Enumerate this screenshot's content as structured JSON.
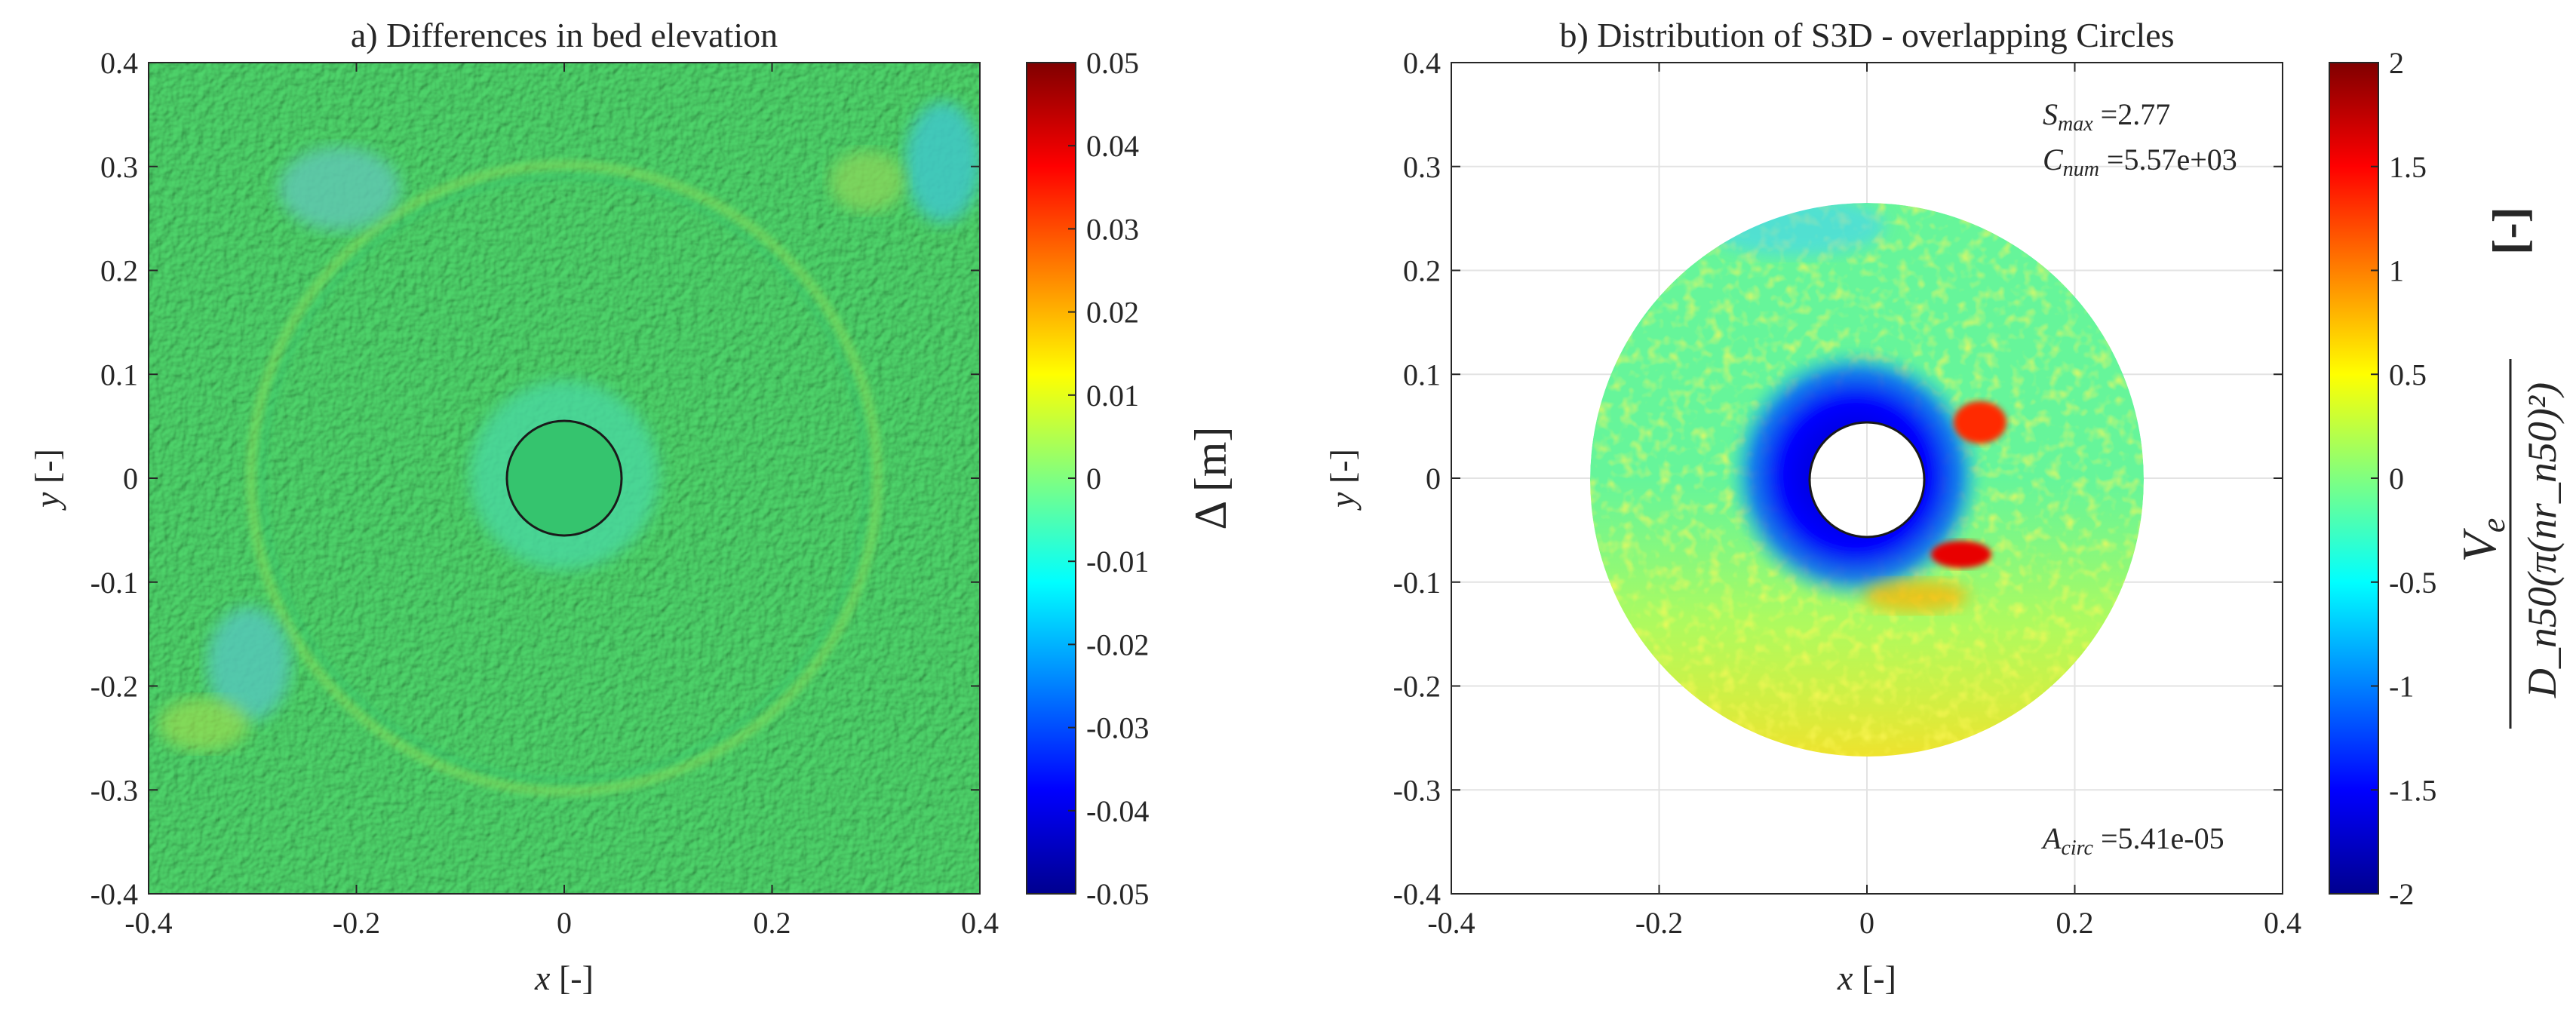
{
  "colors": {
    "axis": "#262626",
    "grid": "#e3e3e3",
    "bg_field": "#4ed36a",
    "jet": [
      "#00008f",
      "#0000ff",
      "#0080ff",
      "#00ffff",
      "#80ff80",
      "#ffff00",
      "#ff8000",
      "#ff0000",
      "#800000"
    ]
  },
  "chart_data": [
    {
      "type": "heatmap",
      "title": "a) Differences in bed elevation",
      "xlabel_var": "x",
      "xlabel_unit": "[-]",
      "ylabel_var": "y",
      "ylabel_unit": "[-]",
      "xlim": [
        -0.4,
        0.4
      ],
      "ylim": [
        -0.4,
        0.4
      ],
      "xticks": [
        "-0.4",
        "-0.2",
        "0",
        "0.2",
        "0.4"
      ],
      "yticks": [
        "0.4",
        "0.3",
        "0.2",
        "0.1",
        "0",
        "-0.1",
        "-0.2",
        "-0.3",
        "-0.4"
      ],
      "grid": false,
      "pile_radius": 0.055,
      "scour_ring_radius": 0.3,
      "colorbar": {
        "label_symbol": "Δ",
        "label_unit": "[m]",
        "range": [
          -0.05,
          0.05
        ],
        "ticks": [
          "0.05",
          "0.04",
          "0.03",
          "0.02",
          "0.01",
          "0",
          "-0.01",
          "-0.02",
          "-0.03",
          "-0.04",
          "-0.05"
        ]
      }
    },
    {
      "type": "heatmap",
      "title": "b) Distribution of S3D - overlapping Circles",
      "xlabel_var": "x",
      "xlabel_unit": "[-]",
      "ylabel_var": "y",
      "ylabel_unit": "[-]",
      "xlim": [
        -0.4,
        0.4
      ],
      "ylim": [
        -0.4,
        0.4
      ],
      "xticks": [
        "-0.4",
        "-0.2",
        "0",
        "0.2",
        "0.4"
      ],
      "yticks": [
        "0.4",
        "0.3",
        "0.2",
        "0.1",
        "0",
        "-0.1",
        "-0.2",
        "-0.3",
        "-0.4"
      ],
      "grid": true,
      "domain_outer_radius": 0.265,
      "pile_radius": 0.055,
      "annotations": {
        "smax_var": "S",
        "smax_sub": "max",
        "smax_value": " =2.77",
        "cnum_var": "C",
        "cnum_sub": "num",
        "cnum_value": " =5.57e+03",
        "acirc_var": "A",
        "acirc_sub": "circ",
        "acirc_value": " =5.41e-05"
      },
      "colorbar": {
        "range": [
          -2,
          2
        ],
        "ticks": [
          "2",
          "1.5",
          "1",
          "0.5",
          "0",
          "-0.5",
          "-1",
          "-1.5",
          "-2"
        ],
        "label_numerator": "V",
        "label_numerator_sub": "e",
        "label_denominator": "D_n50(π(nr_n50)²)",
        "label_unit": "[-]"
      }
    }
  ]
}
